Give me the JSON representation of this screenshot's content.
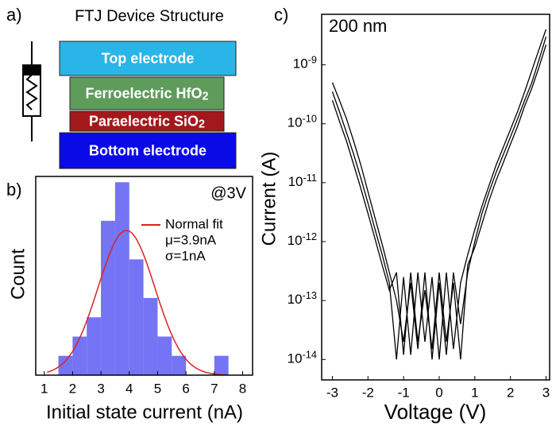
{
  "diagram": {
    "label": "a)",
    "title": "FTJ Device Structure",
    "layers": [
      {
        "text": "Top electrode",
        "color": "#29b5e8"
      },
      {
        "text": "Ferroelectric HfO2",
        "color": "#5f9c5c"
      },
      {
        "text": "Paraelectric SiO2",
        "color": "#a3191b"
      },
      {
        "text": "Bottom electrode",
        "color": "#0a0ae6"
      }
    ]
  },
  "chart_data": [
    {
      "type": "histogram",
      "label": "b)",
      "annotation": "@3V",
      "xlabel": "Initial state current (nA)",
      "ylabel": "Count",
      "bins": [
        1.5,
        2,
        2.5,
        3,
        3.5,
        4,
        4.5,
        5,
        5.5,
        6,
        6.5,
        7,
        7.5
      ],
      "values": [
        1,
        2,
        3,
        8,
        10,
        6,
        4,
        2,
        1,
        0,
        0,
        1
      ],
      "color": "#7474f4",
      "xlim": [
        0.7,
        8.35
      ],
      "xticks": [
        1,
        2,
        3,
        4,
        5,
        6,
        7,
        8
      ],
      "ylim": [
        0,
        10.3
      ],
      "fit": {
        "name": "Normal fit",
        "color": "#e02020",
        "mu": 3.9,
        "sigma": 1,
        "peak": 7.5,
        "mu_label": "μ=3.9nA",
        "sigma_label": "σ=1nA"
      }
    },
    {
      "type": "line",
      "label": "c)",
      "annotation": "200 nm",
      "xlabel": "Voltage (V)",
      "ylabel": "Current (A)",
      "log_y": true,
      "x": [
        -3,
        -2.8,
        -2.6,
        -2.4,
        -2.2,
        -2,
        -1.8,
        -1.6,
        -1.4,
        -1.2,
        -1,
        -0.8,
        -0.6,
        -0.4,
        -0.2,
        0,
        0.2,
        0.4,
        0.6,
        0.8,
        1,
        1.2,
        1.4,
        1.6,
        1.8,
        2,
        2.2,
        2.4,
        2.6,
        2.8,
        3
      ],
      "series": [
        {
          "color": "#000000",
          "values": [
            5e-10,
            2.5e-10,
            1.2e-10,
            5e-11,
            2e-11,
            7e-12,
            2.5e-12,
            9e-13,
            3e-13,
            1e-13,
            2e-14,
            2e-13,
            1.5e-14,
            3e-13,
            1e-14,
            2e-13,
            1.2e-14,
            3e-13,
            4e-14,
            3e-13,
            1e-12,
            3e-12,
            7e-12,
            1.5e-11,
            3e-11,
            6e-11,
            1.2e-10,
            2.5e-10,
            5e-10,
            1.2e-09,
            3e-09
          ]
        },
        {
          "color": "#000000",
          "values": [
            3.5e-10,
            1.6e-10,
            7e-11,
            3e-11,
            1.2e-11,
            4.5e-12,
            1.6e-12,
            6e-13,
            2e-13,
            1e-14,
            2.5e-13,
            1.2e-14,
            3e-13,
            2e-14,
            2.5e-13,
            1e-14,
            3e-13,
            1.5e-14,
            2e-13,
            6e-13,
            1.6e-12,
            4e-12,
            9e-12,
            2e-11,
            4e-11,
            8e-11,
            1.6e-10,
            3.5e-10,
            8e-10,
            1.8e-09,
            4e-09
          ]
        },
        {
          "color": "#000000",
          "values": [
            2.5e-10,
            1.1e-10,
            5e-11,
            2e-11,
            8e-12,
            3e-12,
            1.1e-12,
            4e-13,
            1.5e-13,
            3e-13,
            1.2e-14,
            3e-13,
            2e-14,
            1.5e-13,
            1.5e-14,
            3e-13,
            2e-14,
            2e-13,
            1e-14,
            4e-13,
            8e-13,
            2e-12,
            5e-12,
            1.1e-11,
            2.2e-11,
            4.5e-11,
            9e-11,
            2e-10,
            4e-10,
            9e-10,
            2.2e-09
          ]
        }
      ],
      "xlim": [
        -3.3,
        3.1
      ],
      "xticks": [
        -3,
        -2,
        -1,
        0,
        1,
        2,
        3
      ],
      "ylim": [
        4.5e-15,
        7.2e-09
      ],
      "yticks": [
        {
          "value": 1e-14,
          "label": "10-14"
        },
        {
          "value": 1e-13,
          "label": "10-13"
        },
        {
          "value": 1e-12,
          "label": "10-12"
        },
        {
          "value": 1e-11,
          "label": "10-11"
        },
        {
          "value": 1e-10,
          "label": "10-10"
        },
        {
          "value": 1e-09,
          "label": "10-9"
        }
      ]
    }
  ]
}
